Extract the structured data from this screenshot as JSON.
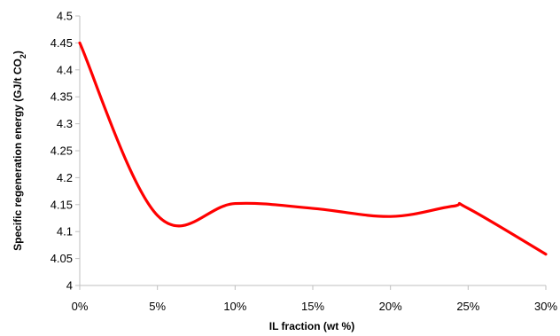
{
  "chart_data": {
    "type": "line",
    "title": "",
    "xlabel": "IL fraction (wt %)",
    "ylabel_main": "Specific regeneration energy (GJ/t CO",
    "ylabel_sub": "2",
    "ylabel_close": ")",
    "x": [
      0,
      5,
      10,
      15,
      20,
      25,
      30
    ],
    "x_tick_labels": [
      "0%",
      "5%",
      "10%",
      "15%",
      "20%",
      "25%",
      "30%"
    ],
    "series": [
      {
        "color": "#ff0000",
        "x": [
          0,
          5,
          10,
          15,
          20,
          24,
          25,
          30
        ],
        "values": [
          4.45,
          4.13,
          4.152,
          4.143,
          4.128,
          4.147,
          4.143,
          4.058
        ]
      }
    ],
    "ylim": [
      4.0,
      4.5
    ],
    "y_ticks": [
      4,
      4.05,
      4.1,
      4.15,
      4.2,
      4.25,
      4.3,
      4.35,
      4.4,
      4.45,
      4.5
    ],
    "y_tick_labels": [
      "4",
      "4.05",
      "4.1",
      "4.15",
      "4.2",
      "4.25",
      "4.3",
      "4.35",
      "4.4",
      "4.45",
      "4.5"
    ],
    "xlim": [
      0,
      30
    ],
    "grid": false,
    "legend": "none",
    "smooth": true
  }
}
